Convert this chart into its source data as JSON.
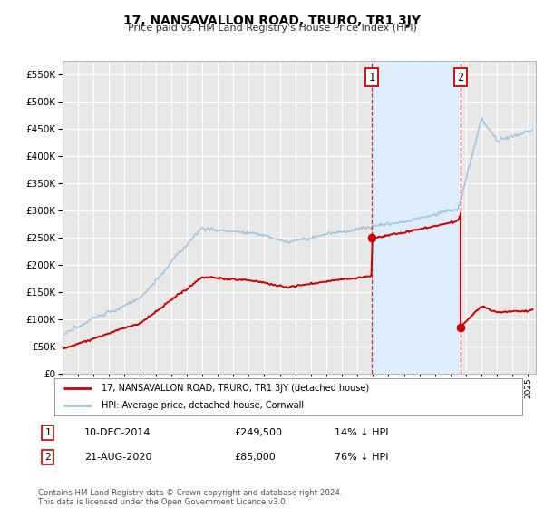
{
  "title": "17, NANSAVALLON ROAD, TRURO, TR1 3JY",
  "subtitle": "Price paid vs. HM Land Registry's House Price Index (HPI)",
  "ylim": [
    0,
    575000
  ],
  "ytick_vals": [
    0,
    50000,
    100000,
    150000,
    200000,
    250000,
    300000,
    350000,
    400000,
    450000,
    500000,
    550000
  ],
  "background_color": "#ffffff",
  "plot_bg_color": "#e8e8e8",
  "grid_color": "#ffffff",
  "hpi_color": "#a8c4e0",
  "price_color": "#cc0000",
  "shade_color": "#ddeeff",
  "marker1_date_x": 2014.94,
  "marker1_y": 249500,
  "marker2_date_x": 2020.64,
  "marker2_y": 85000,
  "annotation1": {
    "label": "1",
    "date": "10-DEC-2014",
    "price": "£249,500",
    "pct": "14% ↓ HPI"
  },
  "annotation2": {
    "label": "2",
    "date": "21-AUG-2020",
    "price": "£85,000",
    "pct": "76% ↓ HPI"
  },
  "legend_line1": "17, NANSAVALLON ROAD, TRURO, TR1 3JY (detached house)",
  "legend_line2": "HPI: Average price, detached house, Cornwall",
  "footnote": "Contains HM Land Registry data © Crown copyright and database right 2024.\nThis data is licensed under the Open Government Licence v3.0.",
  "xmin": 1995,
  "xmax": 2025.5
}
